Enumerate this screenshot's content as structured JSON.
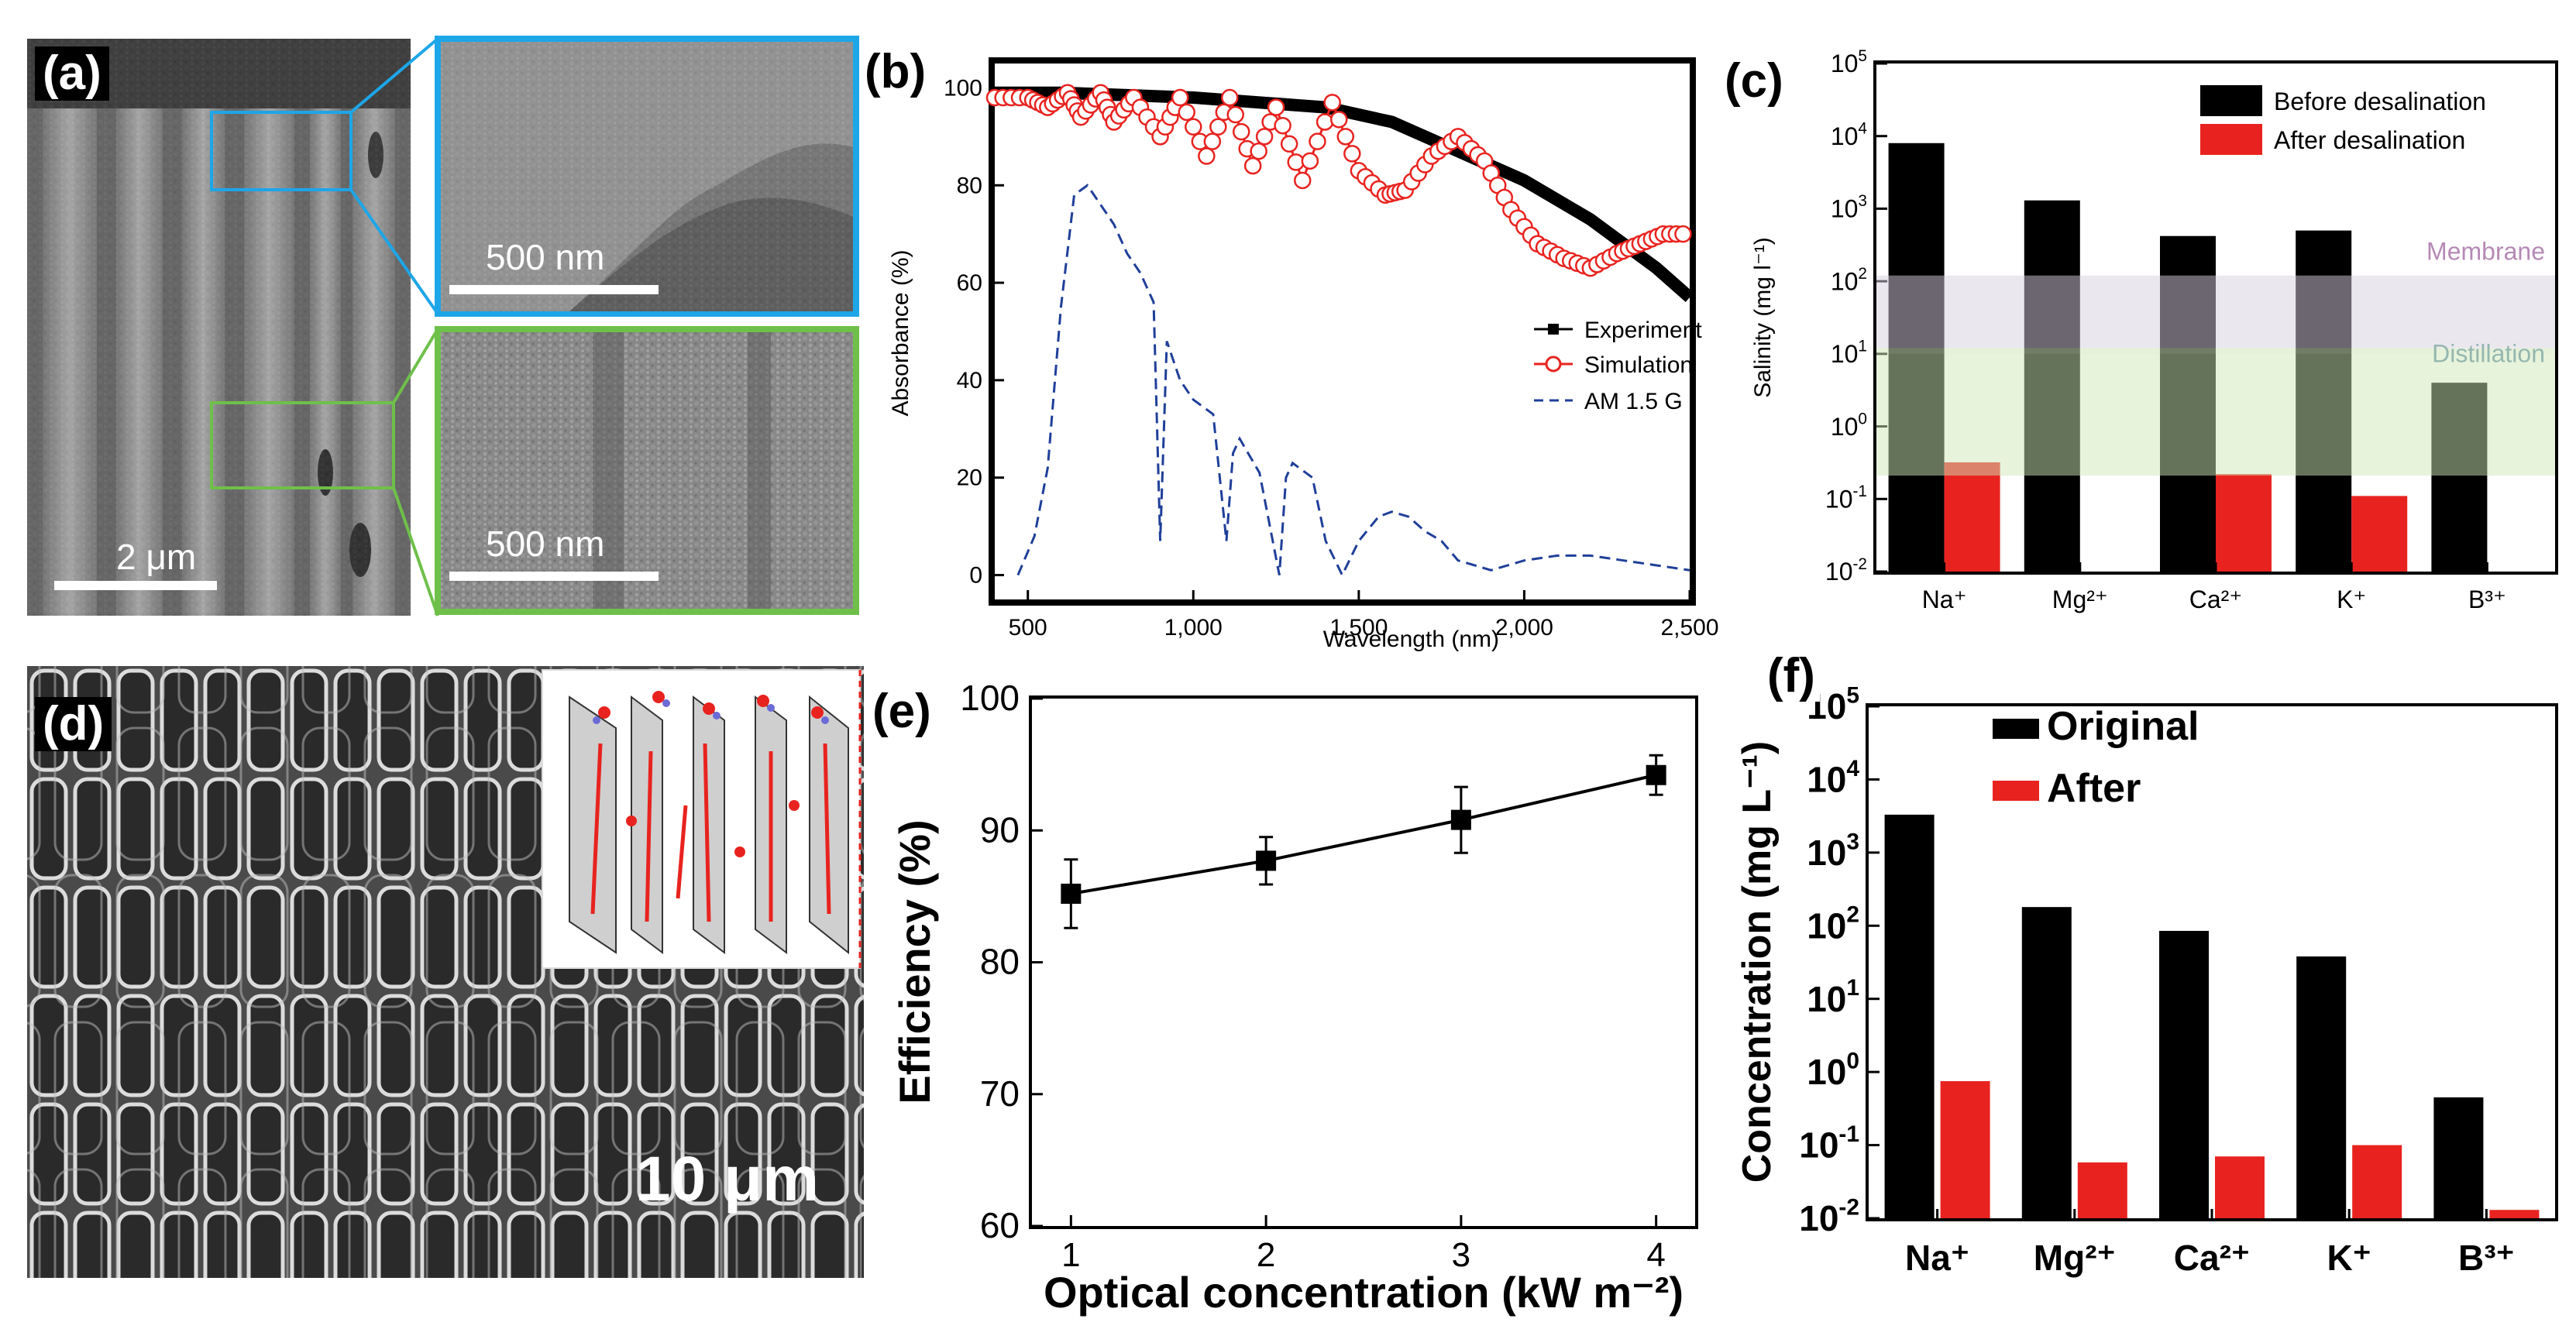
{
  "colors": {
    "black": "#000000",
    "red": "#e8231f",
    "blue": "#1f3f99",
    "cyan": "#1da6e8",
    "green": "#6fc04a",
    "membrane": "#d8cfe0",
    "distillation": "#cfe8b8",
    "purple": "#7a2a7a",
    "teal": "#3d7d6e"
  },
  "panel_a": {
    "label": "(a)",
    "scale_main": "2 μm",
    "scale_inset1": "500 nm",
    "scale_inset2": "500 nm"
  },
  "panel_d": {
    "label": "(d)",
    "scale": "10 μm"
  },
  "chart_data": [
    {
      "id": "b",
      "label": "(b)",
      "type": "line",
      "xlabel": "Wavelength (nm)",
      "ylabel": "Absorbance (%)",
      "xlim": [
        400,
        2500
      ],
      "ylim": [
        -5,
        105
      ],
      "xticks": [
        "500",
        "1,000",
        "1,500",
        "2,000",
        "2,500"
      ],
      "xtick_values": [
        500,
        1000,
        1500,
        2000,
        2500
      ],
      "yticks": [
        "0",
        "20",
        "40",
        "60",
        "80",
        "100"
      ],
      "ytick_values": [
        0,
        20,
        40,
        60,
        80,
        100
      ],
      "legend": [
        "Experiment",
        "Simulation",
        "AM 1.5 G"
      ],
      "series": [
        {
          "name": "Experiment",
          "x": [
            400,
            600,
            800,
            1000,
            1200,
            1400,
            1600,
            1800,
            1900,
            2000,
            2100,
            2200,
            2300,
            2400,
            2500
          ],
          "y": [
            99,
            99,
            98.5,
            98,
            97,
            96,
            93,
            87,
            84,
            81,
            77,
            73,
            68,
            63,
            57
          ]
        },
        {
          "name": "Simulation",
          "x": [
            400,
            500,
            560,
            620,
            660,
            720,
            760,
            820,
            900,
            960,
            1040,
            1110,
            1180,
            1250,
            1330,
            1420,
            1500,
            1580,
            1640,
            1720,
            1800,
            1880,
            1960,
            2040,
            2120,
            2200,
            2280,
            2350,
            2420,
            2500
          ],
          "y": [
            98,
            98,
            96,
            99,
            94,
            99,
            93,
            98,
            90,
            98,
            86,
            98,
            84,
            96,
            81,
            97,
            83,
            78,
            79,
            86,
            90,
            85,
            75,
            68,
            65,
            63,
            66,
            68,
            70,
            70
          ]
        },
        {
          "name": "AM 1.5 G",
          "x": [
            470,
            520,
            560,
            600,
            640,
            680,
            720,
            760,
            800,
            840,
            880,
            900,
            920,
            940,
            960,
            1000,
            1060,
            1100,
            1120,
            1140,
            1200,
            1260,
            1280,
            1300,
            1360,
            1400,
            1450,
            1500,
            1560,
            1600,
            1650,
            1700,
            1750,
            1800,
            1850,
            1900,
            2000,
            2100,
            2200,
            2300,
            2400,
            2500
          ],
          "y": [
            0,
            8,
            22,
            55,
            78,
            80,
            76,
            72,
            66,
            62,
            56,
            7,
            48,
            44,
            40,
            36,
            33,
            7,
            25,
            28,
            21,
            0,
            20,
            23,
            20,
            7,
            0,
            7,
            12,
            13,
            12,
            9,
            7,
            3,
            2,
            1,
            3,
            4,
            4,
            3,
            2,
            1
          ]
        }
      ]
    },
    {
      "id": "c",
      "label": "(c)",
      "type": "bar",
      "ylabel": "Salinity (mg l⁻¹)",
      "yscale": "log",
      "ylim": [
        0.01,
        100000
      ],
      "ytick_exponents": [
        "-2",
        "-1",
        "0",
        "1",
        "2",
        "3",
        "4",
        "5"
      ],
      "categories": [
        "Na⁺",
        "Mg²⁺",
        "Ca²⁺",
        "K⁺",
        "B³⁺"
      ],
      "legend": [
        "Before desalination",
        "After desalination"
      ],
      "series": [
        {
          "name": "Before desalination",
          "values": [
            8000,
            1300,
            420,
            500,
            4
          ]
        },
        {
          "name": "After desalination",
          "values": [
            0.32,
            null,
            0.22,
            0.11,
            null
          ]
        }
      ],
      "bands": [
        {
          "name": "Membrane",
          "from": 10,
          "to": 120
        },
        {
          "name": "Distillation",
          "from": 0.21,
          "to": 12
        }
      ]
    },
    {
      "id": "e",
      "label": "(e)",
      "type": "line",
      "xlabel": "Optical concentration (kW m⁻²)",
      "ylabel": "Efficiency (%)",
      "xlim": [
        0.8,
        4.2
      ],
      "ylim": [
        60,
        100
      ],
      "xticks": [
        "1",
        "2",
        "3",
        "4"
      ],
      "xtick_values": [
        1,
        2,
        3,
        4
      ],
      "yticks": [
        "60",
        "70",
        "80",
        "90",
        "100"
      ],
      "ytick_values": [
        60,
        70,
        80,
        90,
        100
      ],
      "series": [
        {
          "name": "Efficiency",
          "x": [
            1,
            2,
            3,
            4
          ],
          "y": [
            85.2,
            87.7,
            90.8,
            94.2
          ],
          "err": [
            2.6,
            1.8,
            2.5,
            1.5
          ]
        }
      ]
    },
    {
      "id": "f",
      "label": "(f)",
      "type": "bar",
      "ylabel": "Concentration (mg L⁻¹)",
      "yscale": "log",
      "ylim": [
        0.01,
        100000
      ],
      "ytick_exponents": [
        "-2",
        "-1",
        "0",
        "1",
        "2",
        "3",
        "4",
        "5"
      ],
      "categories": [
        "Na⁺",
        "Mg²⁺",
        "Ca²⁺",
        "K⁺",
        "B³⁺"
      ],
      "legend": [
        "Original",
        "After"
      ],
      "series": [
        {
          "name": "Original",
          "values": [
            3300,
            180,
            85,
            38,
            0.45
          ]
        },
        {
          "name": "After",
          "values": [
            0.75,
            0.058,
            0.07,
            0.1,
            0.013
          ]
        }
      ]
    }
  ]
}
